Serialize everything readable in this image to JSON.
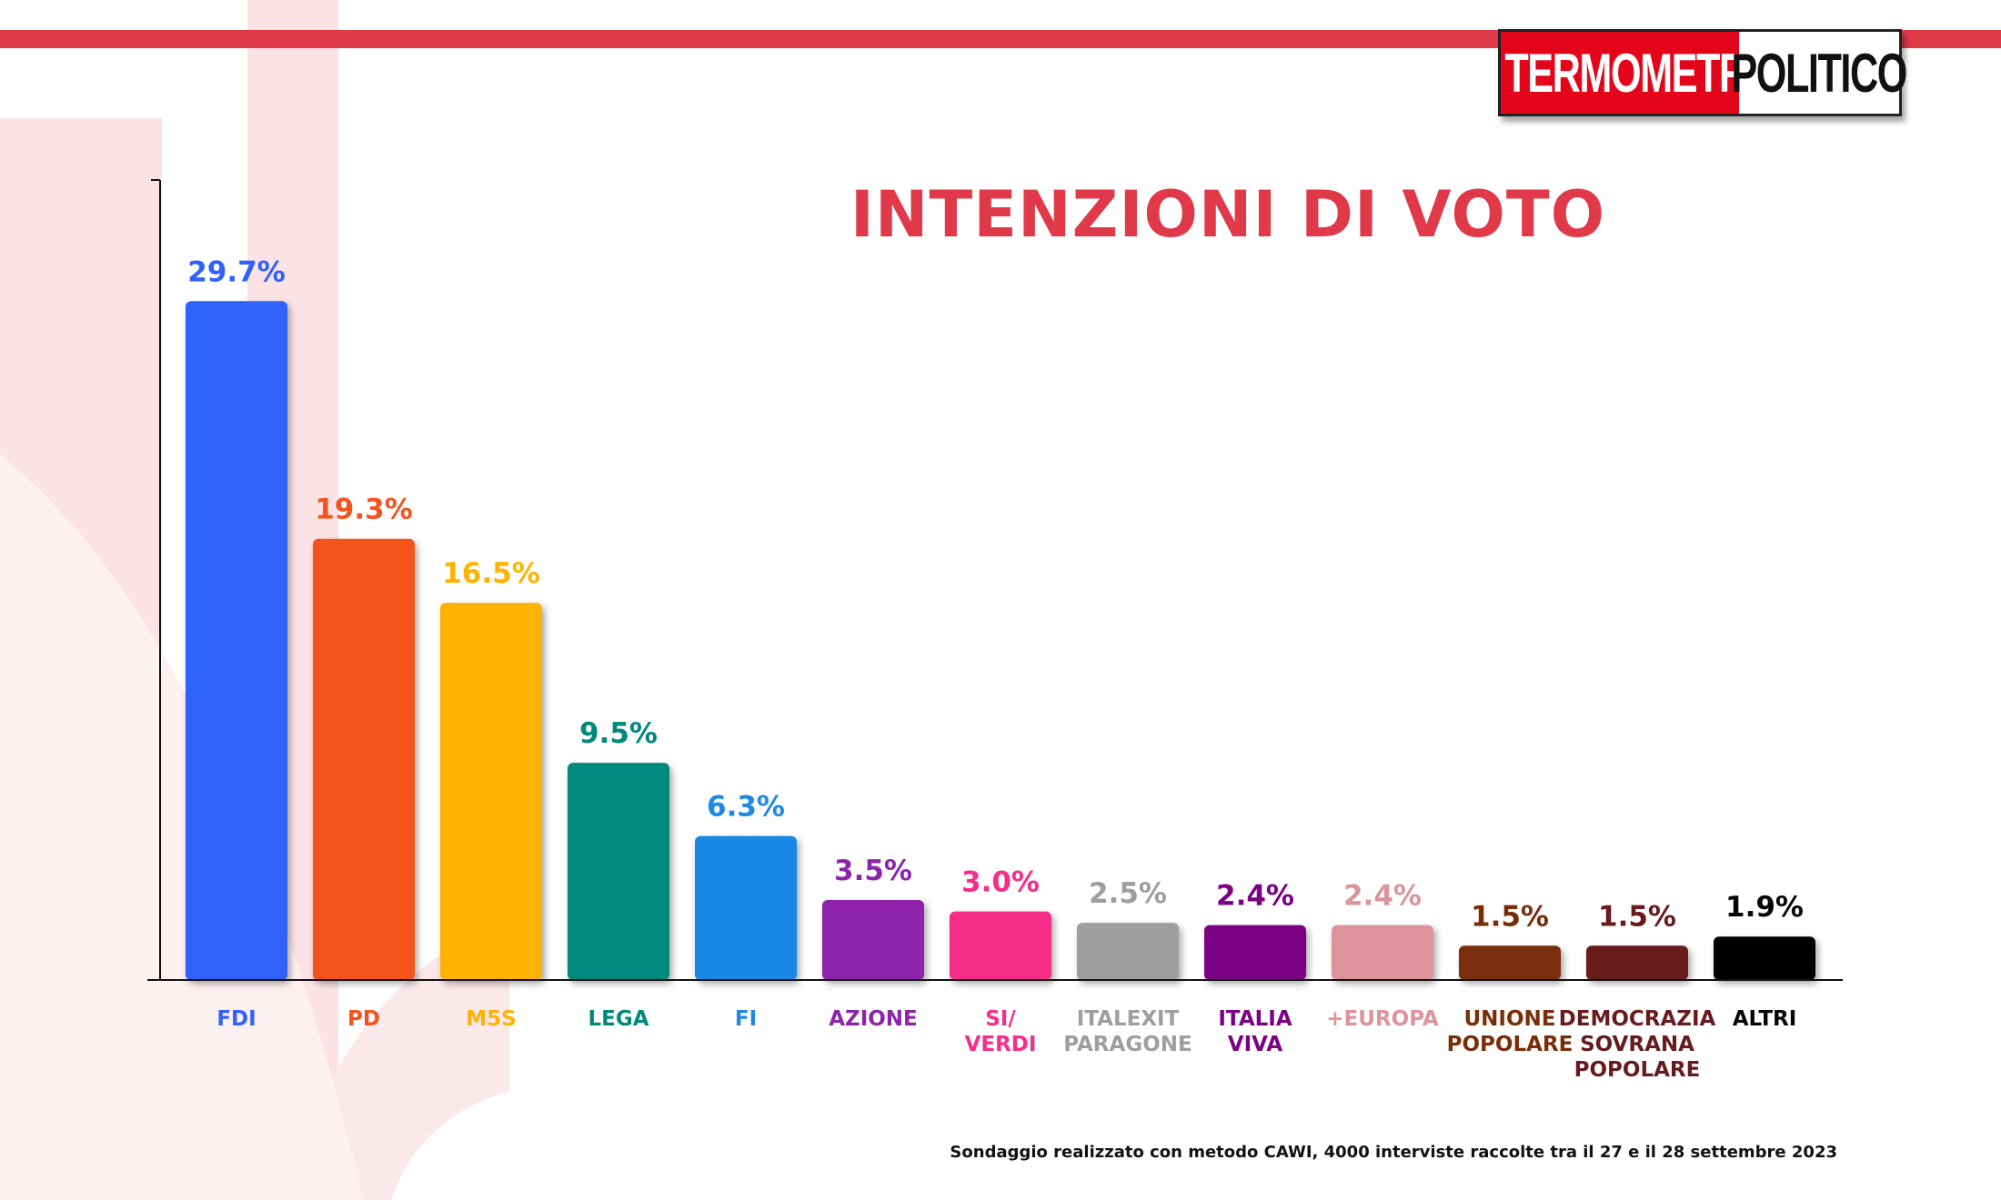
{
  "brand": {
    "logo_left": "TERMOMETRO",
    "logo_right": "POLITICO",
    "accent_color": "#e03a4a"
  },
  "footnote": "Sondaggio realizzato con metodo CAWI, 4000 interviste raccolte tra il 27 e il 28 settembre 2023",
  "chart_data": {
    "type": "bar",
    "title": "INTENZIONI DI VOTO",
    "xlabel": "",
    "ylabel": "",
    "ylim": [
      0,
      35
    ],
    "grid": false,
    "categories": [
      [
        "FDI"
      ],
      [
        "PD"
      ],
      [
        "M5S"
      ],
      [
        "LEGA"
      ],
      [
        "FI"
      ],
      [
        "AZIONE"
      ],
      [
        "SI/",
        "VERDI"
      ],
      [
        "ITALEXIT",
        "PARAGONE"
      ],
      [
        "ITALIA",
        "VIVA"
      ],
      [
        "+EUROPA"
      ],
      [
        "UNIONE",
        "POPOLARE"
      ],
      [
        "DEMOCRAZIA",
        "SOVRANA",
        "POPOLARE"
      ],
      [
        "ALTRI"
      ]
    ],
    "values": [
      29.7,
      19.3,
      16.5,
      9.5,
      6.3,
      3.5,
      3.0,
      2.5,
      2.4,
      2.4,
      1.5,
      1.5,
      1.9
    ],
    "value_labels": [
      "29.7%",
      "19.3%",
      "16.5%",
      "9.5%",
      "6.3%",
      "3.5%",
      "3.0%",
      "2.5%",
      "2.4%",
      "2.4%",
      "1.5%",
      "1.5%",
      "1.9%"
    ],
    "colors": [
      "#2f62fb",
      "#f4521e",
      "#ffb300",
      "#00897b",
      "#1e88e5",
      "#8e24aa",
      "#f72d88",
      "#9e9e9e",
      "#7b0082",
      "#dc949a",
      "#7a2e08",
      "#671b1d",
      "#050505"
    ]
  }
}
